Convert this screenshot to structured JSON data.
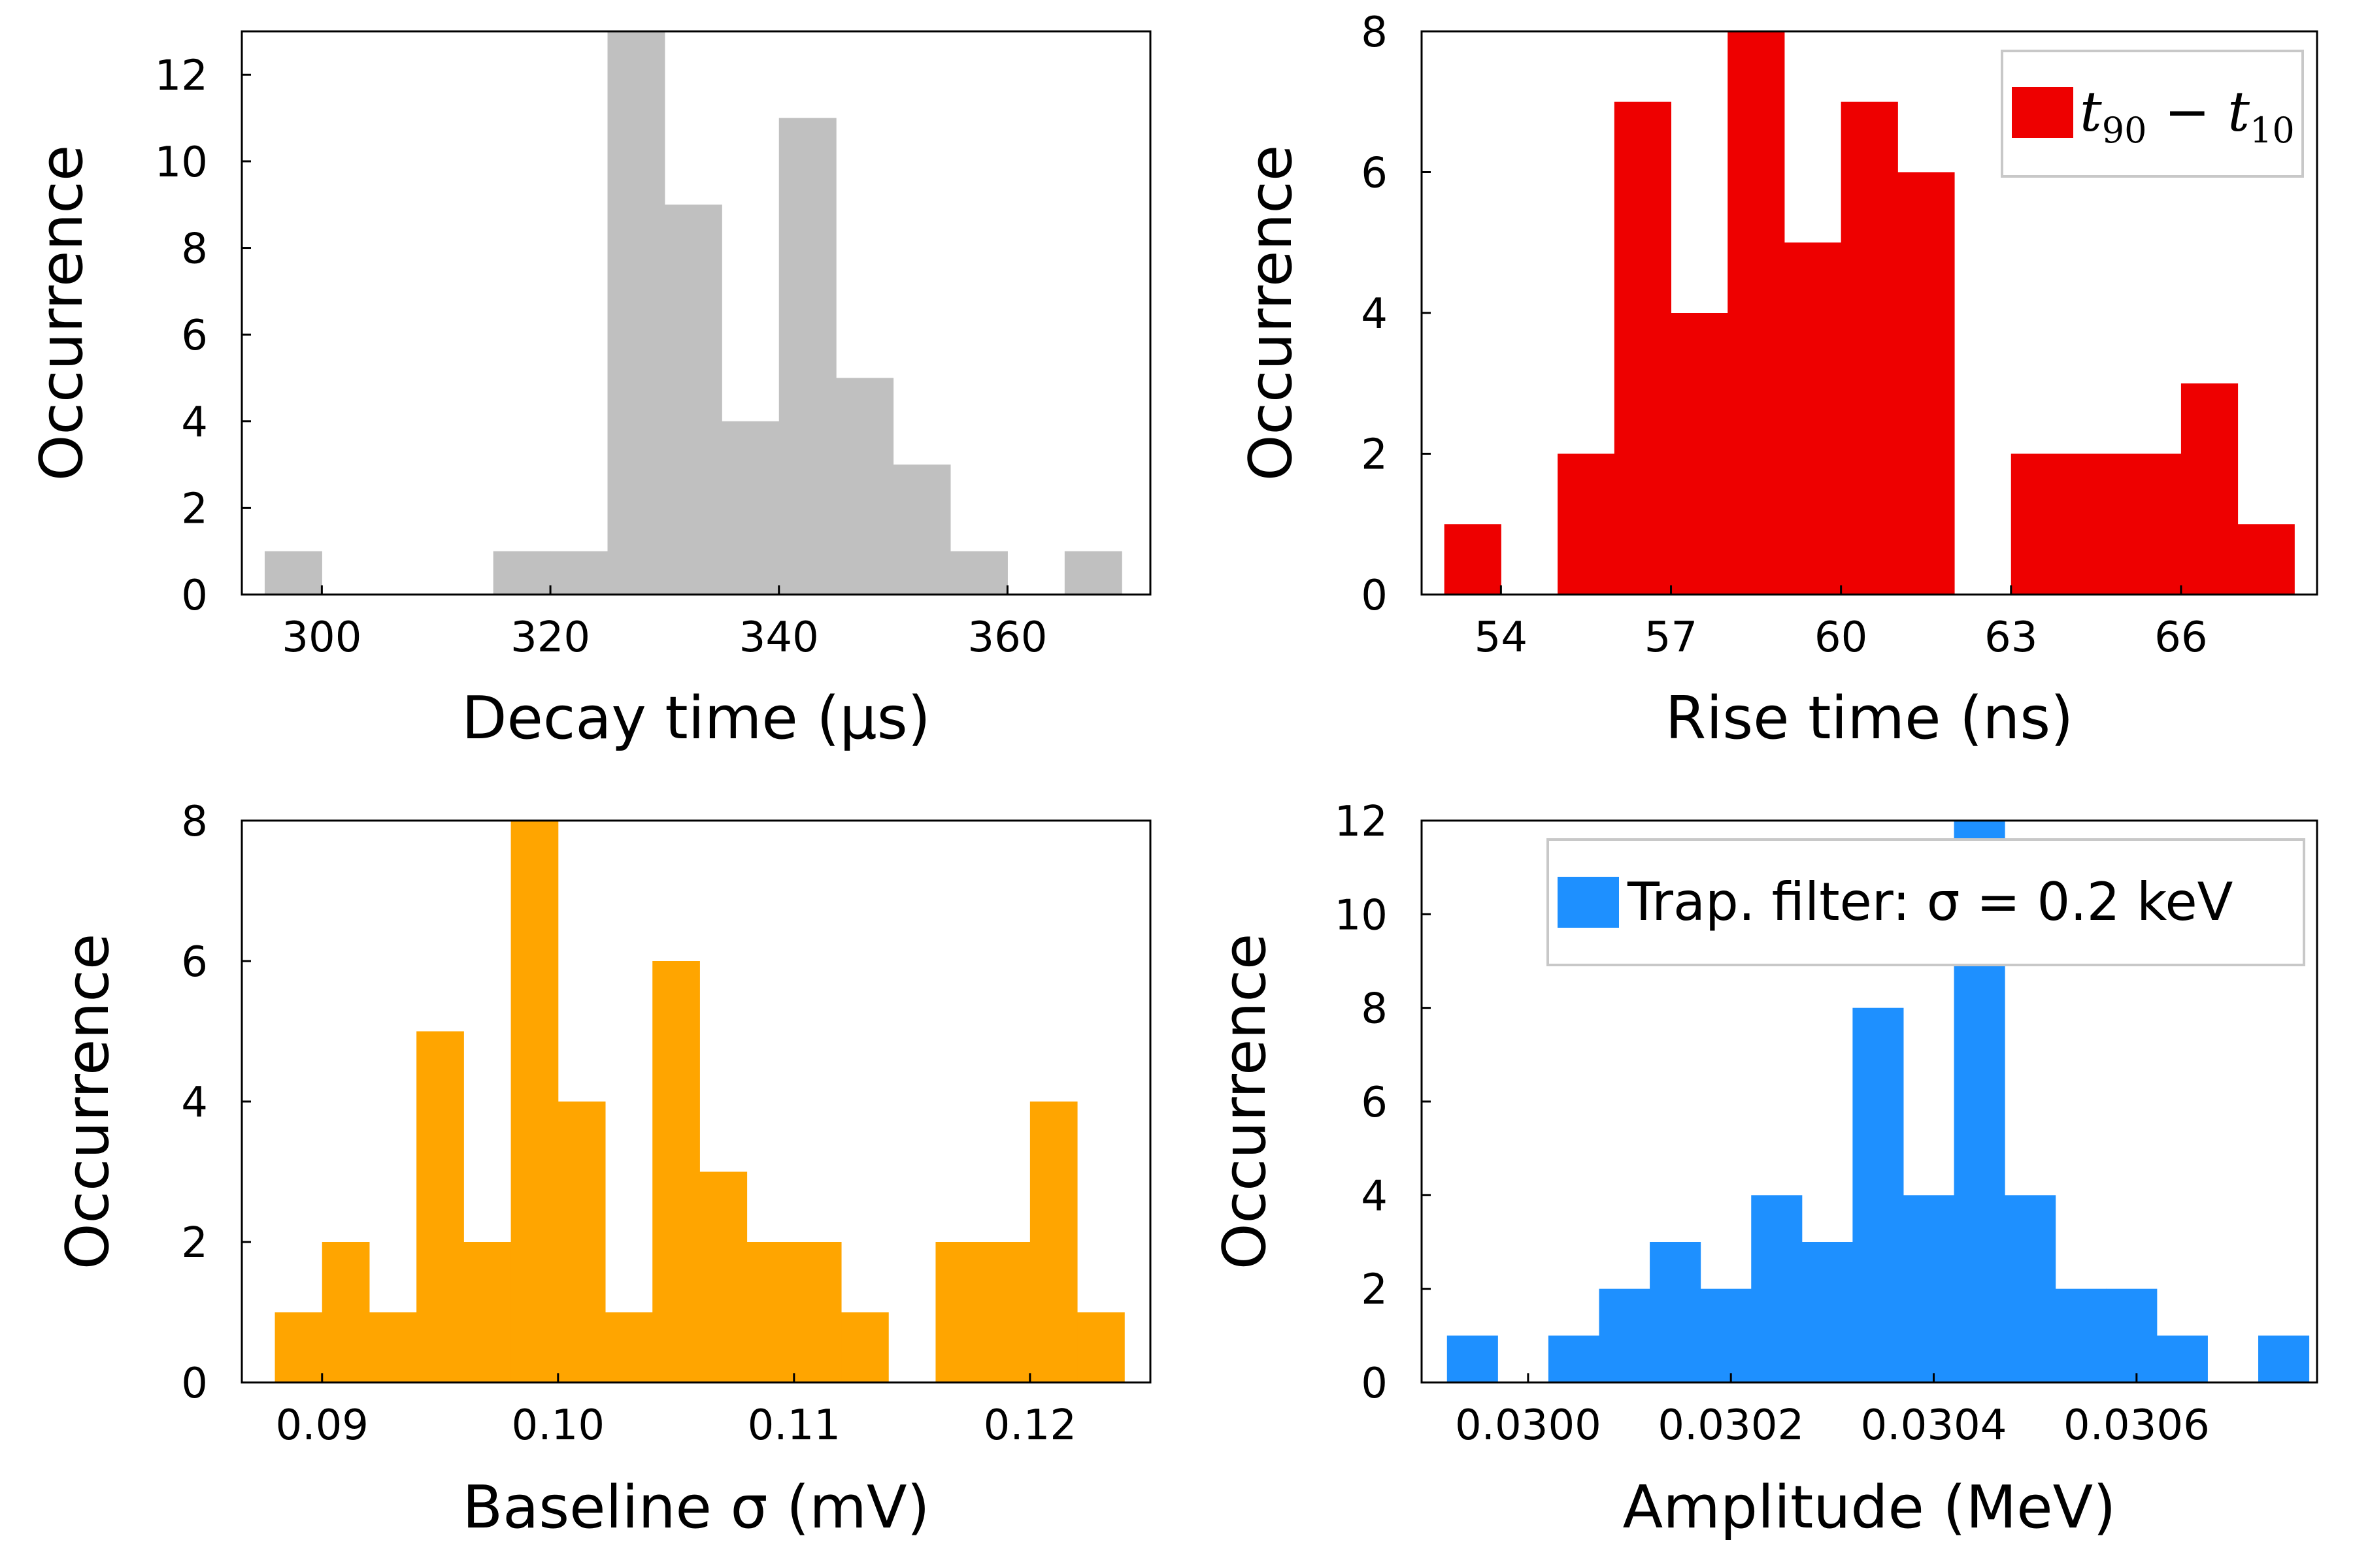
{
  "chart_data": [
    {
      "type": "bar",
      "panel": "top-left",
      "xlabel": "Decay time (µs)",
      "ylabel": "Occurrence",
      "color": "#c0c0c0",
      "xlim": [
        293,
        372.5
      ],
      "ylim": [
        0,
        13
      ],
      "x_ticks": [
        "300",
        "320",
        "340",
        "360"
      ],
      "x_tick_values": [
        300,
        320,
        340,
        360
      ],
      "y_ticks": [
        "0",
        "2",
        "4",
        "6",
        "8",
        "10",
        "12"
      ],
      "y_tick_values": [
        0,
        2,
        4,
        6,
        8,
        10,
        12
      ],
      "bin_edges": [
        295,
        300,
        305,
        310,
        315,
        320,
        325,
        330,
        335,
        340,
        345,
        350,
        355,
        360,
        365,
        370
      ],
      "values": [
        1,
        0,
        0,
        0,
        1,
        1,
        13,
        9,
        4,
        11,
        5,
        3,
        1,
        0,
        1
      ],
      "legend": null
    },
    {
      "type": "bar",
      "panel": "top-right",
      "xlabel": "Rise time (ns)",
      "ylabel": "Occurrence",
      "color": "#ee0000",
      "xlim": [
        52.6,
        68.4
      ],
      "ylim": [
        0,
        8
      ],
      "x_ticks": [
        "54",
        "57",
        "60",
        "63",
        "66"
      ],
      "x_tick_values": [
        54,
        57,
        60,
        63,
        66
      ],
      "y_ticks": [
        "0",
        "2",
        "4",
        "6",
        "8"
      ],
      "y_tick_values": [
        0,
        2,
        4,
        6,
        8
      ],
      "bin_edges": [
        53,
        54,
        55,
        56,
        57,
        58,
        59,
        60,
        61,
        62,
        63,
        64,
        65,
        66,
        67,
        68
      ],
      "values": [
        1,
        0,
        2,
        7,
        4,
        8,
        5,
        7,
        6,
        0,
        2,
        2,
        2,
        3,
        1
      ],
      "legend": {
        "math": true,
        "main_a": "t",
        "sub_a": "90",
        "op": " − ",
        "main_b": "t",
        "sub_b": "10"
      }
    },
    {
      "type": "bar",
      "panel": "bottom-left",
      "xlabel": "Baseline σ (mV)",
      "ylabel": "Occurrence",
      "color": "#ffa500",
      "xlim": [
        0.0866,
        0.1251
      ],
      "ylim": [
        0,
        8
      ],
      "x_ticks": [
        "0.09",
        "0.10",
        "0.11",
        "0.12"
      ],
      "x_tick_values": [
        0.09,
        0.1,
        0.11,
        0.12
      ],
      "y_ticks": [
        "0",
        "2",
        "4",
        "6",
        "8"
      ],
      "y_tick_values": [
        0,
        2,
        4,
        6,
        8
      ],
      "bin_edges": [
        0.088,
        0.09,
        0.092,
        0.094,
        0.096,
        0.098,
        0.1,
        0.102,
        0.104,
        0.106,
        0.108,
        0.11,
        0.112,
        0.114,
        0.116,
        0.118,
        0.12,
        0.122,
        0.124
      ],
      "values": [
        1,
        2,
        1,
        5,
        2,
        8,
        4,
        1,
        6,
        3,
        2,
        2,
        1,
        0,
        2,
        2,
        4,
        1
      ],
      "legend": null
    },
    {
      "type": "bar",
      "panel": "bottom-right",
      "xlabel": "Amplitude (MeV)",
      "ylabel": "Occurrence",
      "color": "#1e90ff",
      "xlim": [
        0.029895,
        0.030778
      ],
      "ylim": [
        0,
        12
      ],
      "x_ticks": [
        "0.0300",
        "0.0302",
        "0.0304",
        "0.0306"
      ],
      "x_tick_values": [
        0.03,
        0.0302,
        0.0304,
        0.0306
      ],
      "y_ticks": [
        "0",
        "2",
        "4",
        "6",
        "8",
        "10",
        "12"
      ],
      "y_tick_values": [
        0,
        2,
        4,
        6,
        8,
        10,
        12
      ],
      "bin_edges": [
        0.02992,
        0.02997,
        0.03002,
        0.03007,
        0.03012,
        0.03017,
        0.03022,
        0.03027,
        0.03032,
        0.03037,
        0.03042,
        0.03047,
        0.03052,
        0.03057,
        0.03062,
        0.03067,
        0.03072,
        0.03077
      ],
      "values": [
        1,
        0,
        1,
        2,
        3,
        2,
        4,
        3,
        8,
        4,
        12,
        4,
        2,
        2,
        1,
        0,
        1
      ],
      "legend": {
        "math": false,
        "label": "Trap. filter: σ = 0.2 keV"
      }
    }
  ]
}
